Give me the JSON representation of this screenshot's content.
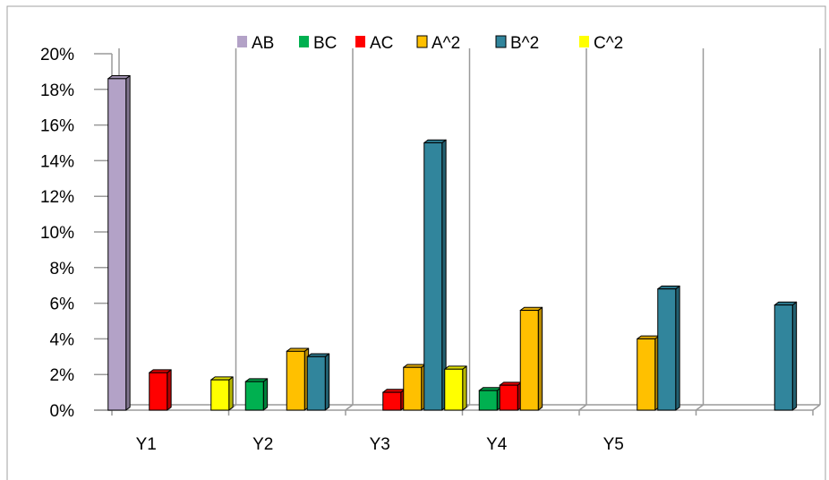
{
  "chart_data": {
    "type": "bar",
    "title": "",
    "xlabel": "",
    "ylabel": "",
    "categories": [
      "Y1",
      "Y2",
      "Y3",
      "Y4",
      "Y5",
      ""
    ],
    "ylim": [
      0,
      0.2
    ],
    "yticks": [
      "0%",
      "2%",
      "4%",
      "6%",
      "8%",
      "10%",
      "12%",
      "14%",
      "16%",
      "18%",
      "20%"
    ],
    "grid": "vertical category separators",
    "legend_position": "top",
    "series": [
      {
        "name": "AB",
        "color": "#b3a2c7",
        "values": [
          0.186,
          0,
          0,
          0,
          0,
          0
        ]
      },
      {
        "name": "BC",
        "color": "#00b050",
        "values": [
          0,
          0.016,
          0,
          0.011,
          0,
          0
        ]
      },
      {
        "name": "AC",
        "color": "#ff0000",
        "values": [
          0.021,
          0,
          0.01,
          0.014,
          0,
          0
        ]
      },
      {
        "name": "A^2",
        "color": "#ffc000",
        "values": [
          0,
          0.033,
          0.024,
          0.056,
          0.04,
          0
        ]
      },
      {
        "name": "B^2",
        "color": "#31859c",
        "values": [
          0,
          0.03,
          0.15,
          0,
          0.068,
          0.059
        ]
      },
      {
        "name": "C^2",
        "color": "#ffff00",
        "values": [
          0.017,
          0,
          0.023,
          0,
          0,
          0
        ]
      }
    ]
  }
}
